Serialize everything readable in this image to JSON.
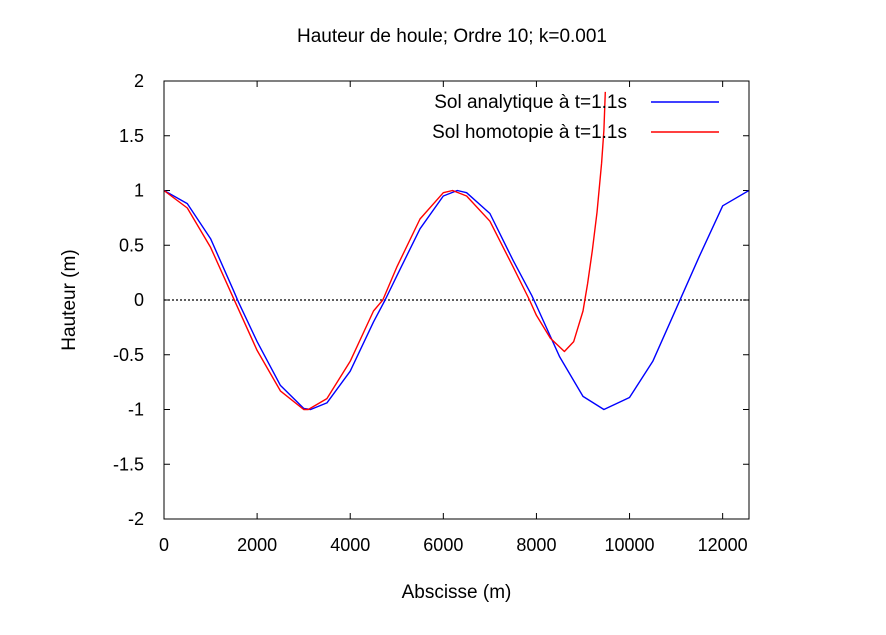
{
  "chart_data": {
    "type": "line",
    "title": "Hauteur de houle; Ordre 10; k=0.001",
    "xlabel": "Abscisse (m)",
    "ylabel": "Hauteur (m)",
    "xlim": [
      0,
      12566
    ],
    "ylim": [
      -2,
      2
    ],
    "x_ticks": [
      0,
      2000,
      4000,
      6000,
      8000,
      10000,
      12000
    ],
    "x_tick_labels": [
      "0",
      "2000",
      "4000",
      "6000",
      "8000",
      "10000",
      "12000"
    ],
    "y_ticks": [
      2,
      1.5,
      1,
      0.5,
      0,
      -0.5,
      -1,
      -1.5,
      -2
    ],
    "y_tick_labels": [
      "2",
      "1.5",
      "1",
      "0.5",
      "0",
      "-0.5",
      "-1",
      "-1.5",
      "-2"
    ],
    "grid": false,
    "zero_line": {
      "y": 0,
      "style": "dotted",
      "color": "#000000"
    },
    "legend_position": "top-right",
    "series": [
      {
        "name": "Sol analytique à t=1.1s",
        "color": "#0000ff",
        "x": [
          0,
          500,
          1000,
          1500,
          1600,
          2000,
          2500,
          3000,
          3150,
          3500,
          4000,
          4500,
          4750,
          5000,
          5500,
          6000,
          6300,
          6500,
          7000,
          7500,
          7900,
          8000,
          8500,
          9000,
          9450,
          10000,
          10500,
          11000,
          11500,
          12000,
          12566
        ],
        "y": [
          1.0,
          0.88,
          0.56,
          0.08,
          -0.02,
          -0.38,
          -0.78,
          -0.99,
          -1.0,
          -0.94,
          -0.65,
          -0.2,
          0.0,
          0.22,
          0.65,
          0.95,
          1.0,
          0.98,
          0.79,
          0.36,
          0.04,
          -0.05,
          -0.52,
          -0.88,
          -1.0,
          -0.89,
          -0.56,
          -0.08,
          0.4,
          0.86,
          1.0
        ]
      },
      {
        "name": "Sol homotopie à t=1.1s",
        "color": "#ff0000",
        "x": [
          0,
          500,
          1000,
          1500,
          2000,
          2500,
          3000,
          3100,
          3500,
          4000,
          4500,
          4700,
          5000,
          5500,
          6000,
          6200,
          6500,
          7000,
          7500,
          7850,
          8000,
          8300,
          8600,
          8800,
          9000,
          9100,
          9200,
          9300,
          9400,
          9450,
          9480
        ],
        "y": [
          1.0,
          0.84,
          0.48,
          0.01,
          -0.46,
          -0.83,
          -1.0,
          -1.0,
          -0.9,
          -0.56,
          -0.1,
          0.0,
          0.3,
          0.74,
          0.98,
          1.0,
          0.95,
          0.72,
          0.3,
          0.0,
          -0.14,
          -0.35,
          -0.47,
          -0.38,
          -0.1,
          0.15,
          0.45,
          0.8,
          1.25,
          1.55,
          1.9
        ]
      }
    ]
  }
}
